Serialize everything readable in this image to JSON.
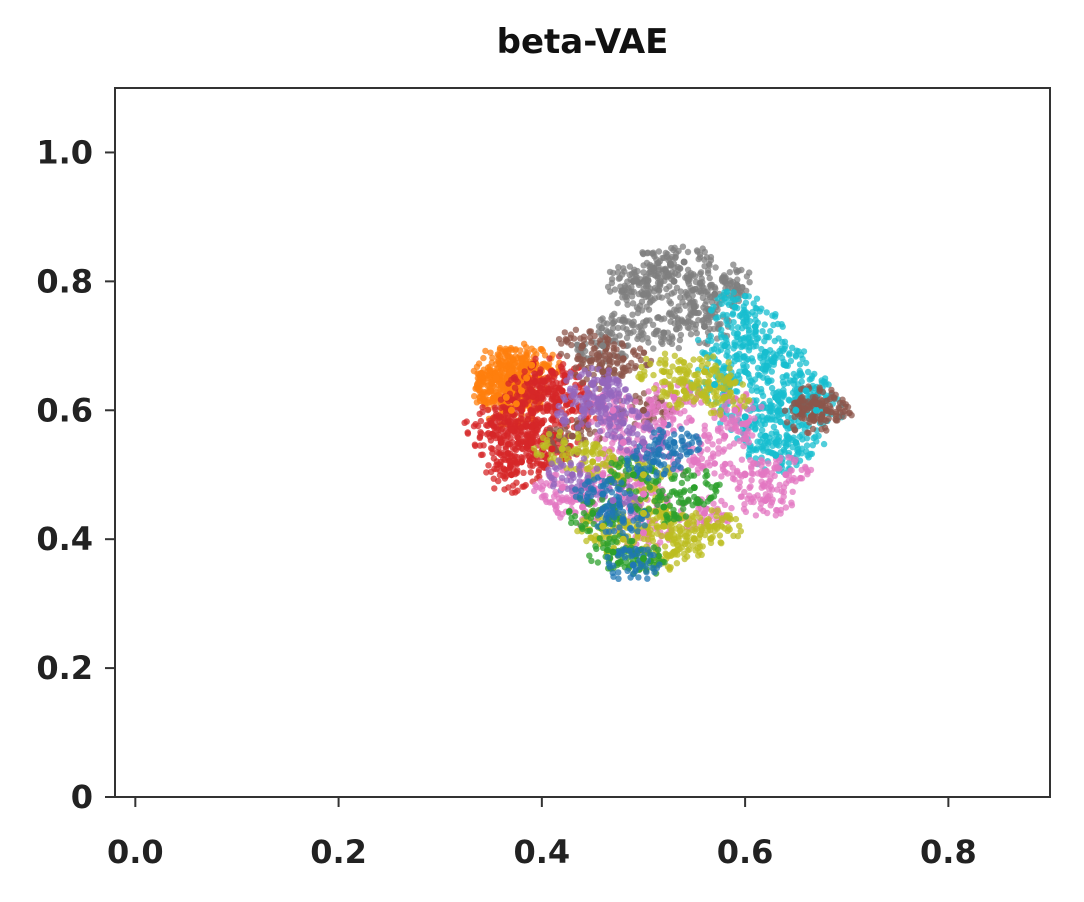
{
  "chart_data": {
    "type": "scatter",
    "title": "beta-VAE",
    "xlabel": "",
    "ylabel": "",
    "xlim": [
      -0.02,
      0.9
    ],
    "ylim": [
      0,
      1.1
    ],
    "x_ticks": [
      {
        "value": 0.0,
        "label": "0.0"
      },
      {
        "value": 0.2,
        "label": "0.2"
      },
      {
        "value": 0.4,
        "label": "0.4"
      },
      {
        "value": 0.6,
        "label": "0.6"
      },
      {
        "value": 0.8,
        "label": "0.8"
      }
    ],
    "y_ticks": [
      {
        "value": 0.0,
        "label": "0"
      },
      {
        "value": 0.2,
        "label": "0.2"
      },
      {
        "value": 0.4,
        "label": "0.4"
      },
      {
        "value": 0.6,
        "label": "0.6"
      },
      {
        "value": 0.8,
        "label": "0.8"
      },
      {
        "value": 1.0,
        "label": "1.0"
      }
    ],
    "grid": false,
    "legend": "none",
    "series": [
      {
        "color": "#ff7f0e",
        "points": [
          [
            0.36,
            0.64
          ],
          [
            0.37,
            0.66
          ],
          [
            0.365,
            0.62
          ],
          [
            0.38,
            0.68
          ],
          [
            0.35,
            0.63
          ],
          [
            0.375,
            0.61
          ],
          [
            0.36,
            0.67
          ],
          [
            0.385,
            0.65
          ],
          [
            0.37,
            0.6
          ],
          [
            0.355,
            0.65
          ],
          [
            0.38,
            0.63
          ],
          [
            0.39,
            0.67
          ]
        ]
      },
      {
        "color": "#d62728",
        "points": [
          [
            0.38,
            0.6
          ],
          [
            0.39,
            0.55
          ],
          [
            0.37,
            0.57
          ],
          [
            0.4,
            0.62
          ],
          [
            0.41,
            0.66
          ],
          [
            0.36,
            0.55
          ],
          [
            0.38,
            0.52
          ],
          [
            0.4,
            0.58
          ],
          [
            0.42,
            0.63
          ],
          [
            0.37,
            0.5
          ],
          [
            0.35,
            0.58
          ],
          [
            0.39,
            0.63
          ],
          [
            0.41,
            0.54
          ],
          [
            0.43,
            0.6
          ]
        ]
      },
      {
        "color": "#7f7f7f",
        "points": [
          [
            0.5,
            0.78
          ],
          [
            0.53,
            0.8
          ],
          [
            0.55,
            0.76
          ],
          [
            0.52,
            0.72
          ],
          [
            0.48,
            0.74
          ],
          [
            0.57,
            0.78
          ],
          [
            0.51,
            0.82
          ],
          [
            0.54,
            0.83
          ],
          [
            0.49,
            0.8
          ],
          [
            0.56,
            0.73
          ],
          [
            0.46,
            0.7
          ],
          [
            0.58,
            0.8
          ]
        ]
      },
      {
        "color": "#17becf",
        "points": [
          [
            0.6,
            0.66
          ],
          [
            0.63,
            0.62
          ],
          [
            0.62,
            0.56
          ],
          [
            0.65,
            0.6
          ],
          [
            0.58,
            0.7
          ],
          [
            0.61,
            0.73
          ],
          [
            0.64,
            0.67
          ],
          [
            0.66,
            0.63
          ],
          [
            0.63,
            0.53
          ],
          [
            0.6,
            0.59
          ],
          [
            0.57,
            0.64
          ],
          [
            0.62,
            0.69
          ],
          [
            0.65,
            0.55
          ],
          [
            0.59,
            0.76
          ],
          [
            0.67,
            0.6
          ]
        ]
      },
      {
        "color": "#8c564b",
        "points": [
          [
            0.67,
            0.61
          ],
          [
            0.665,
            0.59
          ],
          [
            0.68,
            0.6
          ],
          [
            0.46,
            0.66
          ],
          [
            0.44,
            0.7
          ],
          [
            0.48,
            0.68
          ],
          [
            0.43,
            0.56
          ],
          [
            0.5,
            0.6
          ]
        ]
      },
      {
        "color": "#e377c2",
        "points": [
          [
            0.46,
            0.5
          ],
          [
            0.5,
            0.47
          ],
          [
            0.55,
            0.52
          ],
          [
            0.58,
            0.56
          ],
          [
            0.52,
            0.58
          ],
          [
            0.48,
            0.55
          ],
          [
            0.6,
            0.5
          ],
          [
            0.62,
            0.46
          ],
          [
            0.44,
            0.45
          ],
          [
            0.56,
            0.44
          ],
          [
            0.64,
            0.5
          ],
          [
            0.53,
            0.62
          ],
          [
            0.47,
            0.6
          ],
          [
            0.42,
            0.48
          ],
          [
            0.59,
            0.6
          ],
          [
            0.5,
            0.41
          ]
        ]
      },
      {
        "color": "#bcbd22",
        "points": [
          [
            0.52,
            0.42
          ],
          [
            0.55,
            0.4
          ],
          [
            0.5,
            0.44
          ],
          [
            0.57,
            0.42
          ],
          [
            0.53,
            0.38
          ],
          [
            0.48,
            0.4
          ],
          [
            0.54,
            0.63
          ],
          [
            0.56,
            0.66
          ],
          [
            0.52,
            0.66
          ],
          [
            0.45,
            0.52
          ],
          [
            0.42,
            0.54
          ],
          [
            0.58,
            0.62
          ],
          [
            0.5,
            0.5
          ],
          [
            0.46,
            0.42
          ]
        ]
      },
      {
        "color": "#9467bd",
        "points": [
          [
            0.44,
            0.6
          ],
          [
            0.46,
            0.62
          ],
          [
            0.48,
            0.58
          ],
          [
            0.45,
            0.64
          ],
          [
            0.43,
            0.5
          ],
          [
            0.47,
            0.46
          ],
          [
            0.5,
            0.55
          ]
        ]
      },
      {
        "color": "#2ca02c",
        "points": [
          [
            0.47,
            0.38
          ],
          [
            0.5,
            0.37
          ],
          [
            0.52,
            0.45
          ],
          [
            0.49,
            0.5
          ],
          [
            0.55,
            0.48
          ],
          [
            0.45,
            0.44
          ]
        ]
      },
      {
        "color": "#1f77b4",
        "points": [
          [
            0.49,
            0.36
          ],
          [
            0.46,
            0.47
          ],
          [
            0.51,
            0.52
          ],
          [
            0.53,
            0.55
          ],
          [
            0.48,
            0.43
          ]
        ]
      }
    ]
  }
}
